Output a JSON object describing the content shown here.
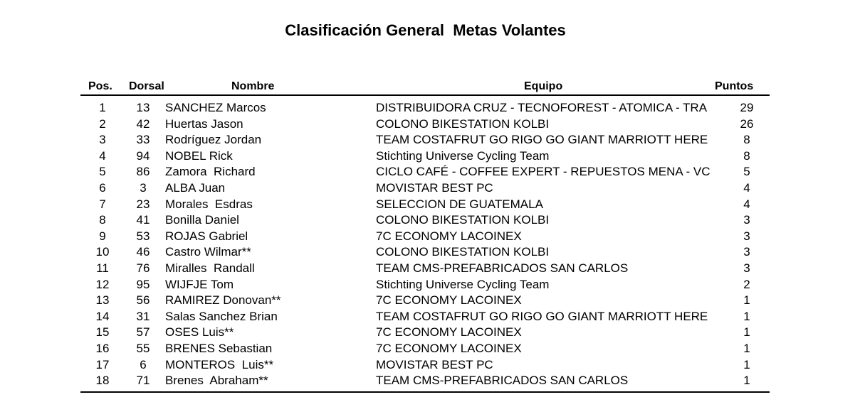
{
  "title": "Clasificación General  Metas Volantes",
  "headers": {
    "pos": "Pos.",
    "dorsal": "Dorsal",
    "nombre": "Nombre",
    "equipo": "Equipo",
    "puntos": "Puntos"
  },
  "rows": [
    {
      "pos": "1",
      "dorsal": "13",
      "nombre": "SANCHEZ Marcos",
      "equipo": "DISTRIBUIDORA CRUZ - TECNOFOREST - ATOMICA - TRA",
      "puntos": "29"
    },
    {
      "pos": "2",
      "dorsal": "42",
      "nombre": "Huertas Jason",
      "equipo": "COLONO BIKESTATION KOLBI",
      "puntos": "26"
    },
    {
      "pos": "3",
      "dorsal": "33",
      "nombre": "Rodríguez Jordan",
      "equipo": "TEAM COSTAFRUT GO RIGO GO GIANT MARRIOTT HERE",
      "puntos": "8"
    },
    {
      "pos": "4",
      "dorsal": "94",
      "nombre": "NOBEL Rick",
      "equipo": "Stichting Universe Cycling Team",
      "puntos": "8"
    },
    {
      "pos": "5",
      "dorsal": "86",
      "nombre": "Zamora  Richard",
      "equipo": "CICLO CAFÉ - COFFEE EXPERT - REPUESTOS MENA - VC",
      "puntos": "5"
    },
    {
      "pos": "6",
      "dorsal": "3",
      "nombre": "ALBA Juan",
      "equipo": "MOVISTAR BEST PC",
      "puntos": "4"
    },
    {
      "pos": "7",
      "dorsal": "23",
      "nombre": "Morales  Esdras",
      "equipo": "SELECCION DE GUATEMALA",
      "puntos": "4"
    },
    {
      "pos": "8",
      "dorsal": "41",
      "nombre": "Bonilla Daniel",
      "equipo": "COLONO BIKESTATION KOLBI",
      "puntos": "3"
    },
    {
      "pos": "9",
      "dorsal": "53",
      "nombre": "ROJAS Gabriel",
      "equipo": "7C ECONOMY LACOINEX",
      "puntos": "3"
    },
    {
      "pos": "10",
      "dorsal": "46",
      "nombre": "Castro Wilmar**",
      "equipo": "COLONO BIKESTATION KOLBI",
      "puntos": "3"
    },
    {
      "pos": "11",
      "dorsal": "76",
      "nombre": "Miralles  Randall",
      "equipo": "TEAM CMS-PREFABRICADOS SAN CARLOS",
      "puntos": "3"
    },
    {
      "pos": "12",
      "dorsal": "95",
      "nombre": "WIJFJE Tom",
      "equipo": "Stichting Universe Cycling Team",
      "puntos": "2"
    },
    {
      "pos": "13",
      "dorsal": "56",
      "nombre": "RAMIREZ Donovan**",
      "equipo": "7C ECONOMY LACOINEX",
      "puntos": "1"
    },
    {
      "pos": "14",
      "dorsal": "31",
      "nombre": "Salas Sanchez Brian",
      "equipo": "TEAM COSTAFRUT GO RIGO GO GIANT MARRIOTT HERE",
      "puntos": "1"
    },
    {
      "pos": "15",
      "dorsal": "57",
      "nombre": "OSES Luis**",
      "equipo": "7C ECONOMY LACOINEX",
      "puntos": "1"
    },
    {
      "pos": "16",
      "dorsal": "55",
      "nombre": "BRENES Sebastian",
      "equipo": "7C ECONOMY LACOINEX",
      "puntos": "1"
    },
    {
      "pos": "17",
      "dorsal": "6",
      "nombre": "MONTEROS  Luis**",
      "equipo": "MOVISTAR BEST PC",
      "puntos": "1"
    },
    {
      "pos": "18",
      "dorsal": "71",
      "nombre": "Brenes  Abraham**",
      "equipo": "TEAM CMS-PREFABRICADOS SAN CARLOS",
      "puntos": "1"
    }
  ]
}
